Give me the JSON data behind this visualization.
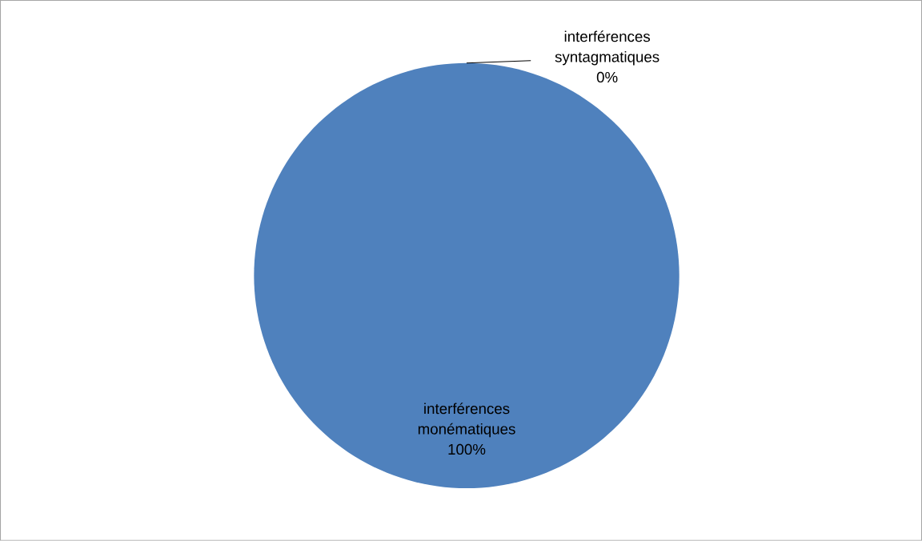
{
  "chart_data": {
    "type": "pie",
    "categories": [
      "interférences monématiques",
      "interférences syntagmatiques"
    ],
    "values": [
      100,
      0
    ],
    "colors": [
      "#4f81bd",
      "#c0504d"
    ],
    "value_labels": [
      "100%",
      "0%"
    ]
  }
}
